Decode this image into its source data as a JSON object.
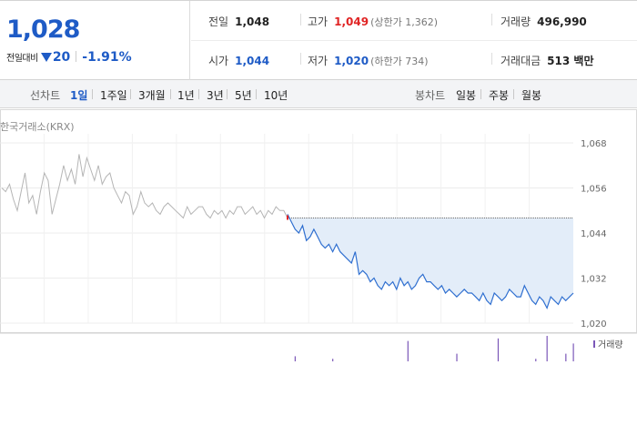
{
  "quote": {
    "price": "1,028",
    "change_label": "전일대비",
    "change": "20",
    "change_pct": "-1.91%",
    "prev_close_label": "전일",
    "prev_close": "1,048",
    "high_label": "고가",
    "high": "1,049",
    "upper_limit": "(상한가 1,362)",
    "volume_label": "거래량",
    "volume": "496,990",
    "open_label": "시가",
    "open": "1,044",
    "low_label": "저가",
    "low": "1,020",
    "lower_limit": "(하한가 734)",
    "value_label": "거래대금",
    "value": "513 백만"
  },
  "tabs": {
    "line_label": "선차트",
    "line_items": [
      "1일",
      "1주일",
      "3개월",
      "1년",
      "3년",
      "5년",
      "10년"
    ],
    "candle_label": "봉차트",
    "candle_items": [
      "일봉",
      "주봉",
      "월봉"
    ]
  },
  "source_label": "한국거래소(KRX)",
  "colors": {
    "up": "#e02424",
    "down": "#1e5bc6",
    "line_today": "#2f6fd0",
    "fill_today": "#e3edf9",
    "line_prev": "#b5b5b5"
  },
  "chart_data": {
    "type": "line",
    "y_ticks": [
      "1,068",
      "1,056",
      "1,044",
      "1,032",
      "1,020"
    ],
    "ylim": [
      1020,
      1068
    ],
    "reference_price": 1048,
    "grid": true,
    "previous_day": [
      1056,
      1055,
      1057,
      1053,
      1050,
      1055,
      1060,
      1052,
      1054,
      1049,
      1055,
      1060,
      1058,
      1049,
      1053,
      1057,
      1062,
      1058,
      1061,
      1057,
      1065,
      1059,
      1064,
      1061,
      1058,
      1062,
      1057,
      1059,
      1060,
      1056,
      1054,
      1052,
      1055,
      1054,
      1049,
      1051,
      1055,
      1052,
      1051,
      1052,
      1050,
      1049,
      1051,
      1052,
      1051,
      1050,
      1049,
      1048,
      1051,
      1049,
      1050,
      1051,
      1051,
      1049,
      1048,
      1050,
      1049,
      1050,
      1048,
      1050,
      1049,
      1051,
      1051,
      1049,
      1050,
      1051,
      1049,
      1050,
      1048,
      1050,
      1049,
      1051,
      1050,
      1050,
      1048
    ],
    "today": [
      1049,
      1047,
      1045,
      1044,
      1046,
      1042,
      1043,
      1045,
      1043,
      1041,
      1040,
      1041,
      1039,
      1041,
      1039,
      1038,
      1037,
      1036,
      1039,
      1033,
      1034,
      1033,
      1031,
      1032,
      1030,
      1029,
      1031,
      1030,
      1031,
      1029,
      1032,
      1030,
      1031,
      1029,
      1030,
      1032,
      1033,
      1031,
      1031,
      1030,
      1029,
      1030,
      1028,
      1029,
      1028,
      1027,
      1028,
      1029,
      1028,
      1028,
      1027,
      1026,
      1028,
      1026,
      1025,
      1028,
      1027,
      1026,
      1027,
      1029,
      1028,
      1027,
      1027,
      1030,
      1028,
      1026,
      1025,
      1027,
      1026,
      1024,
      1027,
      1026,
      1025,
      1027,
      1026,
      1027,
      1028
    ],
    "volume_label": "거래량",
    "volume_today": [
      0,
      0,
      2,
      0,
      0,
      0,
      0,
      0,
      0,
      0,
      0,
      0,
      1,
      0,
      0,
      0,
      0,
      0,
      0,
      0,
      0,
      0,
      0,
      0,
      0,
      0,
      0,
      0,
      0,
      0,
      0,
      0,
      8,
      0,
      0,
      0,
      0,
      0,
      0,
      0,
      0,
      0,
      0,
      0,
      0,
      3,
      0,
      0,
      0,
      0,
      0,
      0,
      0,
      0,
      0,
      0,
      9,
      0,
      0,
      0,
      0,
      0,
      0,
      0,
      0,
      0,
      1,
      0,
      0,
      10,
      0,
      0,
      0,
      0,
      3,
      0,
      7
    ]
  }
}
